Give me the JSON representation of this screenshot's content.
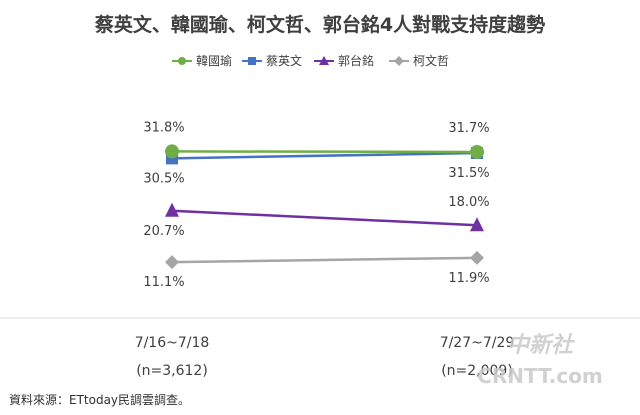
{
  "chart_data": {
    "type": "line",
    "title": "蔡英文、韓國瑜、柯文哲、郭台銘4人對戰支持度趨勢",
    "categories": [
      "7/16~7/18",
      "7/27~7/29"
    ],
    "sample_sizes": [
      "(n=3,612)",
      "(n=2,009)"
    ],
    "series": [
      {
        "name": "韓國瑜",
        "values": [
          31.8,
          31.7
        ],
        "labels": [
          "31.8%",
          "31.7%"
        ],
        "color": "#70ad47",
        "marker": "circle"
      },
      {
        "name": "蔡英文",
        "values": [
          30.5,
          31.5
        ],
        "labels": [
          "30.5%",
          "31.5%"
        ],
        "color": "#4472c4",
        "marker": "square"
      },
      {
        "name": "郭台銘",
        "values": [
          20.7,
          18.0
        ],
        "labels": [
          "20.7%",
          "18.0%"
        ],
        "color": "#7030a0",
        "marker": "triangle"
      },
      {
        "name": "柯文哲",
        "values": [
          11.1,
          11.9
        ],
        "labels": [
          "11.1%",
          "11.9%"
        ],
        "color": "#a5a5a5",
        "marker": "diamond"
      }
    ],
    "legend": [
      "韓國瑜",
      "蔡英文",
      "郭台銘",
      "柯文哲"
    ],
    "legend_position": "top",
    "grid": false
  },
  "source": "資料來源：ETtoday民調雲調查。",
  "watermark": {
    "line1": "中新社",
    "line2": "CRNTT.com"
  }
}
